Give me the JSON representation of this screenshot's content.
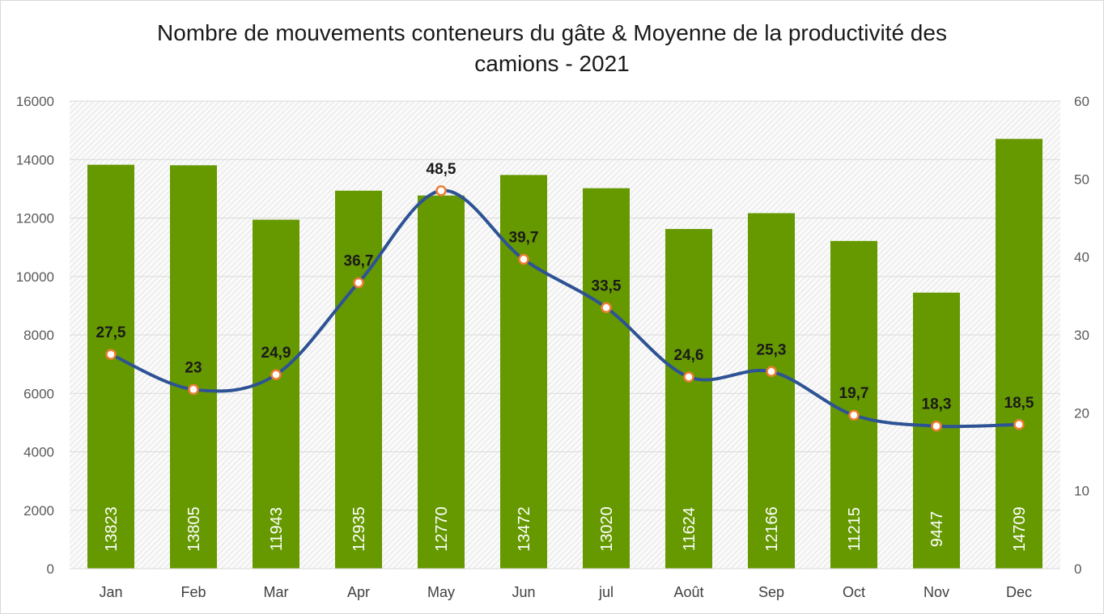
{
  "chart_data": {
    "type": "bar+line",
    "title_line1": "Nombre de mouvements conteneurs du gâte & Moyenne de la productivité des",
    "title_line2": "camions - 2021",
    "categories": [
      "Jan",
      "Feb",
      "Mar",
      "Apr",
      "May",
      "Jun",
      "jul",
      "Août",
      "Sep",
      "Oct",
      "Nov",
      "Dec"
    ],
    "bar_series": {
      "values": [
        13823,
        13805,
        11943,
        12935,
        12770,
        13472,
        13020,
        11624,
        12166,
        11215,
        9447,
        14709
      ],
      "color": "#669900"
    },
    "line_series": {
      "values": [
        27.5,
        23,
        24.9,
        36.7,
        48.5,
        39.7,
        33.5,
        24.6,
        25.3,
        19.7,
        18.3,
        18.5
      ],
      "labels": [
        "27,5",
        "23",
        "24,9",
        "36,7",
        "48,5",
        "39,7",
        "33,5",
        "24,6",
        "25,3",
        "19,7",
        "18,3",
        "18,5"
      ],
      "color": "#2e5395",
      "marker_color": "#ed7d31"
    },
    "y_left": {
      "min": 0,
      "max": 16000,
      "step": 2000,
      "ticks": [
        "0",
        "2000",
        "4000",
        "6000",
        "8000",
        "10000",
        "12000",
        "14000",
        "16000"
      ]
    },
    "y_right": {
      "min": 0,
      "max": 60,
      "step": 10,
      "ticks": [
        "0",
        "10",
        "20",
        "30",
        "40",
        "50",
        "60"
      ]
    },
    "grid": true,
    "xlabel": "",
    "ylabel": ""
  }
}
